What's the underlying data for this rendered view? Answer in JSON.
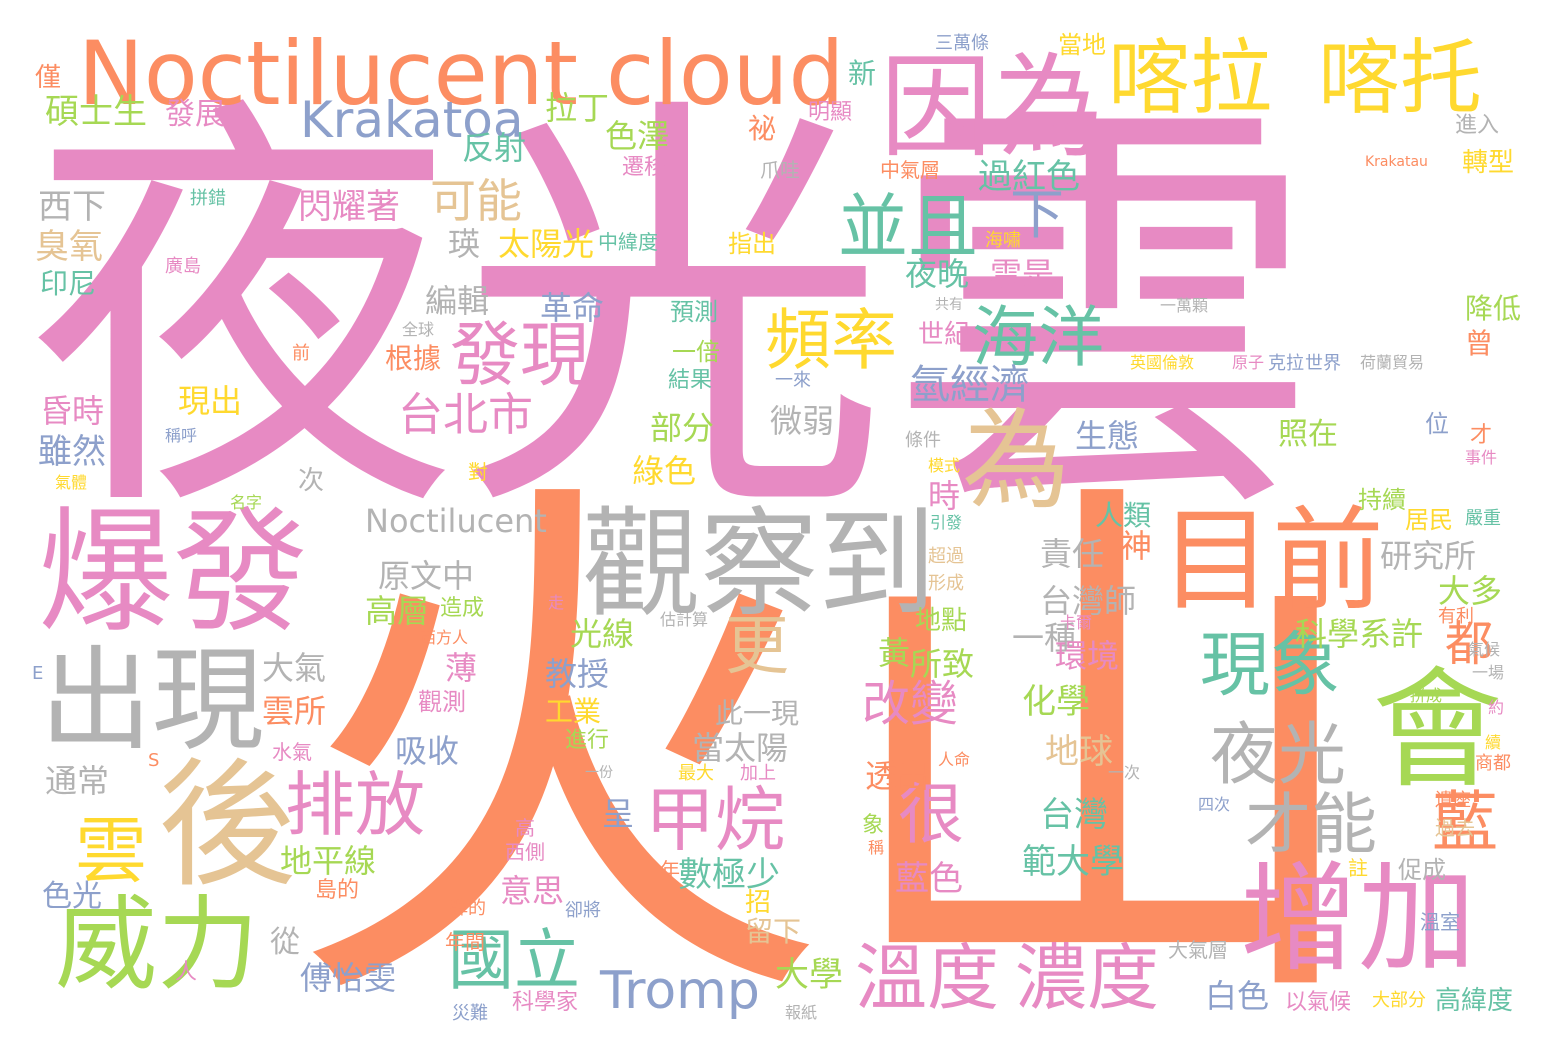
{
  "palette": {
    "pink": "#E78AC3",
    "orange": "#FC8D62",
    "green": "#A6D854",
    "yellow": "#FFD92F",
    "tan": "#E5C494",
    "gray": "#B3B3B3",
    "blue": "#8DA0CB",
    "teal": "#66C2A5"
  },
  "words": [
    {
      "text": "夜光雲",
      "color": "pink"
    },
    {
      "text": "火山",
      "color": "orange"
    },
    {
      "text": "Noctilucent cloud",
      "color": "orange"
    },
    {
      "text": "因為",
      "color": "pink"
    },
    {
      "text": "喀拉",
      "color": "yellow"
    },
    {
      "text": "喀托",
      "color": "yellow"
    },
    {
      "text": "Krakatoa",
      "color": "blue"
    },
    {
      "text": "爆發",
      "color": "pink"
    },
    {
      "text": "觀察到",
      "color": "gray"
    },
    {
      "text": "目前",
      "color": "orange"
    },
    {
      "text": "出現",
      "color": "gray"
    },
    {
      "text": "後",
      "color": "tan"
    },
    {
      "text": "會",
      "color": "green"
    },
    {
      "text": "增加",
      "color": "pink"
    },
    {
      "text": "威力",
      "color": "green"
    },
    {
      "text": "為",
      "color": "tan"
    },
    {
      "text": "溫度",
      "color": "pink"
    },
    {
      "text": "濃度",
      "color": "pink"
    },
    {
      "text": "並且",
      "color": "teal"
    },
    {
      "text": "發現",
      "color": "pink"
    },
    {
      "text": "頻率",
      "color": "yellow"
    },
    {
      "text": "海洋",
      "color": "teal"
    },
    {
      "text": "現象",
      "color": "teal"
    },
    {
      "text": "夜光",
      "color": "gray"
    },
    {
      "text": "才能",
      "color": "gray"
    },
    {
      "text": "排放",
      "color": "pink"
    },
    {
      "text": "甲烷",
      "color": "pink"
    },
    {
      "text": "雲",
      "color": "yellow"
    },
    {
      "text": "國立",
      "color": "teal"
    },
    {
      "text": "Tromp",
      "color": "blue"
    },
    {
      "text": "更",
      "color": "tan"
    },
    {
      "text": "很",
      "color": "pink"
    },
    {
      "text": "藍",
      "color": "orange"
    },
    {
      "text": "台北市",
      "color": "pink"
    },
    {
      "text": "改變",
      "color": "pink"
    },
    {
      "text": "氫經濟",
      "color": "blue"
    },
    {
      "text": "Noctilucent",
      "color": "gray"
    },
    {
      "text": "可能",
      "color": "tan"
    },
    {
      "text": "下",
      "color": "blue"
    },
    {
      "text": "過紅色",
      "color": "teal"
    },
    {
      "text": "碩士生",
      "color": "green"
    },
    {
      "text": "發展",
      "color": "pink"
    },
    {
      "text": "拉丁",
      "color": "green"
    },
    {
      "text": "色澤",
      "color": "green"
    },
    {
      "text": "祕",
      "color": "orange"
    },
    {
      "text": "明顯",
      "color": "pink"
    },
    {
      "text": "新",
      "color": "teal"
    },
    {
      "text": "當地",
      "color": "yellow"
    },
    {
      "text": "三萬條",
      "color": "blue"
    },
    {
      "text": "僅",
      "color": "orange"
    },
    {
      "text": "反射",
      "color": "teal"
    },
    {
      "text": "遷移",
      "color": "pink"
    },
    {
      "text": "爪哇",
      "color": "gray"
    },
    {
      "text": "中氣層",
      "color": "orange"
    },
    {
      "text": "Krakatau",
      "color": "orange"
    },
    {
      "text": "進入",
      "color": "gray"
    },
    {
      "text": "轉型",
      "color": "yellow"
    },
    {
      "text": "西下",
      "color": "gray"
    },
    {
      "text": "拼錯",
      "color": "teal"
    },
    {
      "text": "閃耀著",
      "color": "pink"
    },
    {
      "text": "瑛",
      "color": "gray"
    },
    {
      "text": "太陽光",
      "color": "yellow"
    },
    {
      "text": "中緯度",
      "color": "teal"
    },
    {
      "text": "指出",
      "color": "yellow"
    },
    {
      "text": "海嘯",
      "color": "yellow"
    },
    {
      "text": "臭氧",
      "color": "tan"
    },
    {
      "text": "印尼",
      "color": "teal"
    },
    {
      "text": "廣島",
      "color": "pink"
    },
    {
      "text": "夜晚",
      "color": "teal"
    },
    {
      "text": "雲是",
      "color": "pink"
    },
    {
      "text": "編輯",
      "color": "gray"
    },
    {
      "text": "革命",
      "color": "blue"
    },
    {
      "text": "預測",
      "color": "teal"
    },
    {
      "text": "世紀",
      "color": "pink"
    },
    {
      "text": "共有",
      "color": "gray"
    },
    {
      "text": "一萬顆",
      "color": "gray"
    },
    {
      "text": "降低",
      "color": "green"
    },
    {
      "text": "全球",
      "color": "gray"
    },
    {
      "text": "前",
      "color": "orange"
    },
    {
      "text": "根據",
      "color": "orange"
    },
    {
      "text": "一倍",
      "color": "green"
    },
    {
      "text": "結果",
      "color": "teal"
    },
    {
      "text": "一來",
      "color": "blue"
    },
    {
      "text": "英國倫敦",
      "color": "yellow"
    },
    {
      "text": "原子",
      "color": "pink"
    },
    {
      "text": "克拉",
      "color": "blue"
    },
    {
      "text": "世界",
      "color": "blue"
    },
    {
      "text": "荷蘭貿易",
      "color": "gray"
    },
    {
      "text": "曾",
      "color": "orange"
    },
    {
      "text": "昏時",
      "color": "pink"
    },
    {
      "text": "現出",
      "color": "yellow"
    },
    {
      "text": "部分",
      "color": "green"
    },
    {
      "text": "微弱",
      "color": "gray"
    },
    {
      "text": "生態",
      "color": "blue"
    },
    {
      "text": "照在",
      "color": "green"
    },
    {
      "text": "位",
      "color": "blue"
    },
    {
      "text": "才",
      "color": "orange"
    },
    {
      "text": "事件",
      "color": "pink"
    },
    {
      "text": "雖然",
      "color": "blue"
    },
    {
      "text": "稱呼",
      "color": "blue"
    },
    {
      "text": "對",
      "color": "yellow"
    },
    {
      "text": "綠色",
      "color": "yellow"
    },
    {
      "text": "條件",
      "color": "gray"
    },
    {
      "text": "模式",
      "color": "yellow"
    },
    {
      "text": "氣體",
      "color": "yellow"
    },
    {
      "text": "次",
      "color": "gray"
    },
    {
      "text": "時",
      "color": "pink"
    },
    {
      "text": "名字",
      "color": "green"
    },
    {
      "text": "人類",
      "color": "teal"
    },
    {
      "text": "持續",
      "color": "green"
    },
    {
      "text": "居民",
      "color": "yellow"
    },
    {
      "text": "嚴重",
      "color": "teal"
    },
    {
      "text": "引發",
      "color": "teal"
    },
    {
      "text": "責任",
      "color": "gray"
    },
    {
      "text": "神",
      "color": "orange"
    },
    {
      "text": "研究所",
      "color": "gray"
    },
    {
      "text": "原文中",
      "color": "gray"
    },
    {
      "text": "超過",
      "color": "tan"
    },
    {
      "text": "台灣師",
      "color": "gray"
    },
    {
      "text": "大多",
      "color": "green"
    },
    {
      "text": "有利",
      "color": "orange"
    },
    {
      "text": "高層",
      "color": "green"
    },
    {
      "text": "造成",
      "color": "green"
    },
    {
      "text": "走",
      "color": "pink"
    },
    {
      "text": "形成",
      "color": "tan"
    },
    {
      "text": "光線",
      "color": "green"
    },
    {
      "text": "地點",
      "color": "green"
    },
    {
      "text": "一種",
      "color": "gray"
    },
    {
      "text": "科學系許",
      "color": "green"
    },
    {
      "text": "都",
      "color": "orange"
    },
    {
      "text": "估計算",
      "color": "gray"
    },
    {
      "text": "西方人",
      "color": "orange"
    },
    {
      "text": "卡爾",
      "color": "pink"
    },
    {
      "text": "E",
      "color": "blue"
    },
    {
      "text": "薄",
      "color": "pink"
    },
    {
      "text": "教授",
      "color": "blue"
    },
    {
      "text": "黃",
      "color": "green"
    },
    {
      "text": "所致",
      "color": "green"
    },
    {
      "text": "環境",
      "color": "pink"
    },
    {
      "text": "氣候",
      "color": "gray"
    },
    {
      "text": "大氣",
      "color": "gray"
    },
    {
      "text": "一場",
      "color": "gray"
    },
    {
      "text": "拼成",
      "color": "green"
    },
    {
      "text": "約",
      "color": "pink"
    },
    {
      "text": "雲所",
      "color": "orange"
    },
    {
      "text": "觀測",
      "color": "pink"
    },
    {
      "text": "工業",
      "color": "yellow"
    },
    {
      "text": "此一現",
      "color": "gray"
    },
    {
      "text": "化學",
      "color": "green"
    },
    {
      "text": "水氣",
      "color": "pink"
    },
    {
      "text": "吸收",
      "color": "blue"
    },
    {
      "text": "進行",
      "color": "green"
    },
    {
      "text": "當太陽",
      "color": "gray"
    },
    {
      "text": "地球",
      "color": "tan"
    },
    {
      "text": "S",
      "color": "orange"
    },
    {
      "text": "人命",
      "color": "orange"
    },
    {
      "text": "續",
      "color": "yellow"
    },
    {
      "text": "通常",
      "color": "gray"
    },
    {
      "text": "一份",
      "color": "gray"
    },
    {
      "text": "最大",
      "color": "yellow"
    },
    {
      "text": "加上",
      "color": "pink"
    },
    {
      "text": "透出",
      "color": "orange"
    },
    {
      "text": "一次",
      "color": "gray"
    },
    {
      "text": "商都",
      "color": "orange"
    },
    {
      "text": "四次",
      "color": "blue"
    },
    {
      "text": "遺座",
      "color": "orange"
    },
    {
      "text": "過去",
      "color": "tan"
    },
    {
      "text": "台灣",
      "color": "teal"
    },
    {
      "text": "高",
      "color": "pink"
    },
    {
      "text": "呈",
      "color": "blue"
    },
    {
      "text": "象",
      "color": "green"
    },
    {
      "text": "稱",
      "color": "orange"
    },
    {
      "text": "西側",
      "color": "pink"
    },
    {
      "text": "地平線",
      "color": "green"
    },
    {
      "text": "年",
      "color": "orange"
    },
    {
      "text": "數極少",
      "color": "teal"
    },
    {
      "text": "範大學",
      "color": "teal"
    },
    {
      "text": "促成",
      "color": "gray"
    },
    {
      "text": "註",
      "color": "yellow"
    },
    {
      "text": "色光",
      "color": "blue"
    },
    {
      "text": "島的",
      "color": "orange"
    },
    {
      "text": "意思",
      "color": "pink"
    },
    {
      "text": "藍色",
      "color": "pink"
    },
    {
      "text": "弾的",
      "color": "orange"
    },
    {
      "text": "卻將",
      "color": "blue"
    },
    {
      "text": "溫室",
      "color": "blue"
    },
    {
      "text": "招",
      "color": "yellow"
    },
    {
      "text": "從",
      "color": "gray"
    },
    {
      "text": "留下",
      "color": "tan"
    },
    {
      "text": "年間",
      "color": "orange"
    },
    {
      "text": "大氣層",
      "color": "gray"
    },
    {
      "text": "大學",
      "color": "green"
    },
    {
      "text": "傅怡雯",
      "color": "blue"
    },
    {
      "text": "人",
      "color": "pink"
    },
    {
      "text": "白色",
      "color": "blue"
    },
    {
      "text": "災難",
      "color": "blue"
    },
    {
      "text": "科學家",
      "color": "pink"
    },
    {
      "text": "報紙",
      "color": "gray"
    },
    {
      "text": "以氣候",
      "color": "pink"
    },
    {
      "text": "大部分",
      "color": "yellow"
    },
    {
      "text": "高緯度",
      "color": "teal"
    }
  ]
}
